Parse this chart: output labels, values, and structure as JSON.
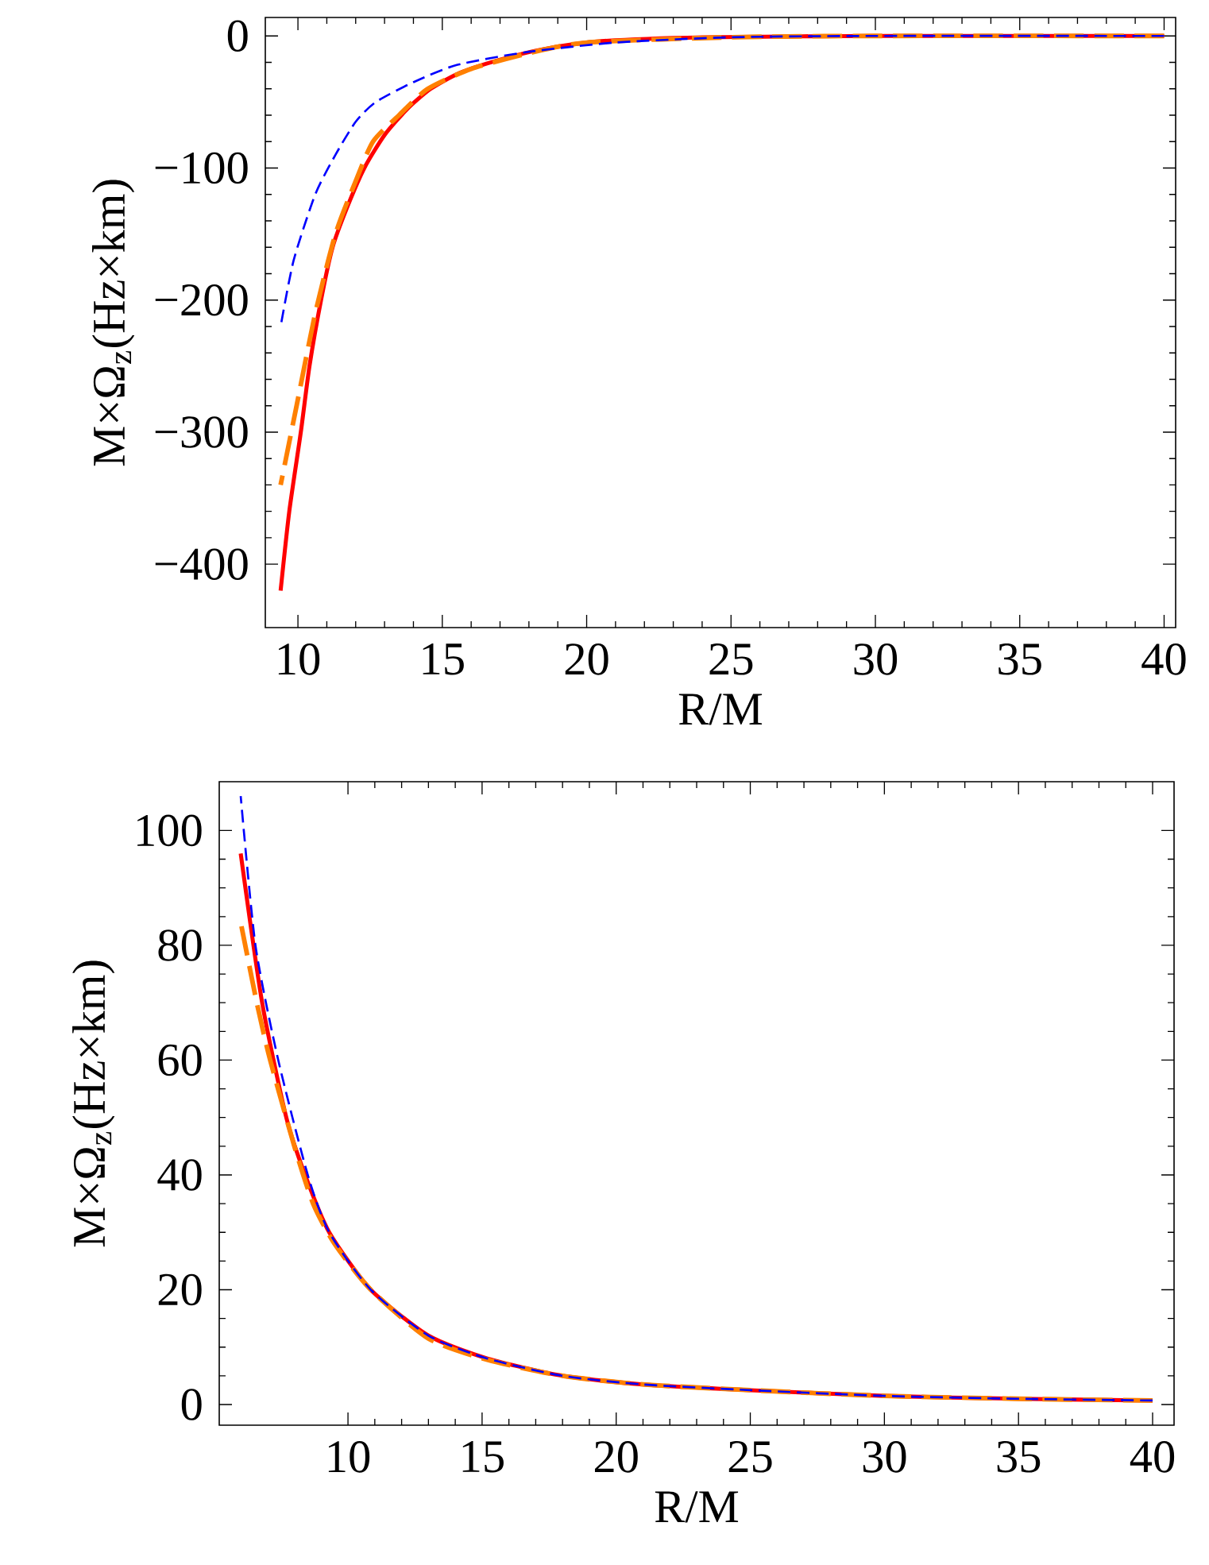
{
  "chart_data": [
    {
      "type": "line",
      "xlabel": "R/M",
      "ylabel": "M×Ω$_{z}$(Hz×km)",
      "xlim": [
        8.87,
        40.4
      ],
      "ylim": [
        -448,
        14
      ],
      "xticks": [
        10,
        15,
        20,
        25,
        30,
        35,
        40
      ],
      "yticks": [
        {
          "value": -400,
          "label": "−400"
        },
        {
          "value": -300,
          "label": "−300"
        },
        {
          "value": -200,
          "label": "−200"
        },
        {
          "value": -100,
          "label": "−100"
        },
        0
      ],
      "series": [
        {
          "color": "#ff0000",
          "line_style": "solid",
          "x": [
            9.4,
            9.7,
            10.1,
            10.4,
            10.8,
            11.2,
            11.7,
            12.3,
            13,
            13.8,
            14.6,
            15.6,
            17,
            18.5,
            20.5,
            24,
            30,
            40
          ],
          "values": [
            -420,
            -360,
            -300,
            -250,
            -200,
            -160,
            -130,
            -100,
            -75,
            -55,
            -40,
            -28,
            -18,
            -10,
            -4,
            -1,
            0,
            0
          ]
        },
        {
          "color": "#ff8000",
          "line_style": "dashed",
          "x": [
            9.4,
            10,
            10.6,
            11.3,
            12,
            12.6,
            13.5,
            14.5,
            16,
            18,
            20,
            25,
            30,
            40
          ],
          "values": [
            -340,
            -275,
            -210,
            -150,
            -110,
            -80,
            -60,
            -40,
            -25,
            -13,
            -5,
            -1,
            0,
            0
          ]
        },
        {
          "color": "#0000ff",
          "line_style": "dashed",
          "x": [
            9.4,
            9.85,
            10.6,
            11.3,
            12,
            12.7,
            14,
            15.5,
            18,
            21,
            25,
            30,
            40
          ],
          "values": [
            -220,
            -170,
            -120,
            -90,
            -65,
            -50,
            -35,
            -22,
            -12,
            -5,
            -1,
            0,
            0
          ]
        }
      ]
    },
    {
      "type": "line",
      "xlabel": "R/M",
      "ylabel": "M×Ω$_{z}$(Hz×km)",
      "xlim": [
        5.2,
        40.8
      ],
      "ylim": [
        -3.6,
        108.5
      ],
      "xticks": [
        10,
        15,
        20,
        25,
        30,
        35,
        40
      ],
      "yticks": [
        0,
        20,
        40,
        60,
        80,
        100
      ],
      "series": [
        {
          "color": "#ff0000",
          "line_style": "solid",
          "x": [
            6,
            6.8,
            7.7,
            8.4,
            9.3,
            10.85,
            13,
            15.2,
            18,
            21,
            25,
            30,
            35,
            40
          ],
          "values": [
            96,
            70,
            50,
            40,
            30,
            20,
            12,
            8,
            5,
            3.5,
            2.5,
            1.5,
            1,
            0.7
          ]
        },
        {
          "color": "#ff8000",
          "line_style": "dashed",
          "x": [
            6,
            6.6,
            7.1,
            8,
            8.7,
            9.5,
            10.85,
            13,
            15.2,
            18,
            21,
            25,
            30,
            35,
            40
          ],
          "values": [
            84,
            70,
            60,
            45,
            35,
            28,
            20,
            11.5,
            7.8,
            5,
            3.5,
            2.5,
            1.5,
            1,
            0.7
          ]
        },
        {
          "color": "#0000ff",
          "line_style": "dashed",
          "x": [
            6,
            6.55,
            7.4,
            8.5,
            9.3,
            10.85,
            13,
            15.2,
            18,
            21,
            25,
            30,
            35,
            40
          ],
          "values": [
            106,
            80,
            60,
            40,
            30,
            20,
            12,
            8,
            5,
            3.5,
            2.5,
            1.5,
            1,
            0.7
          ]
        }
      ]
    }
  ]
}
